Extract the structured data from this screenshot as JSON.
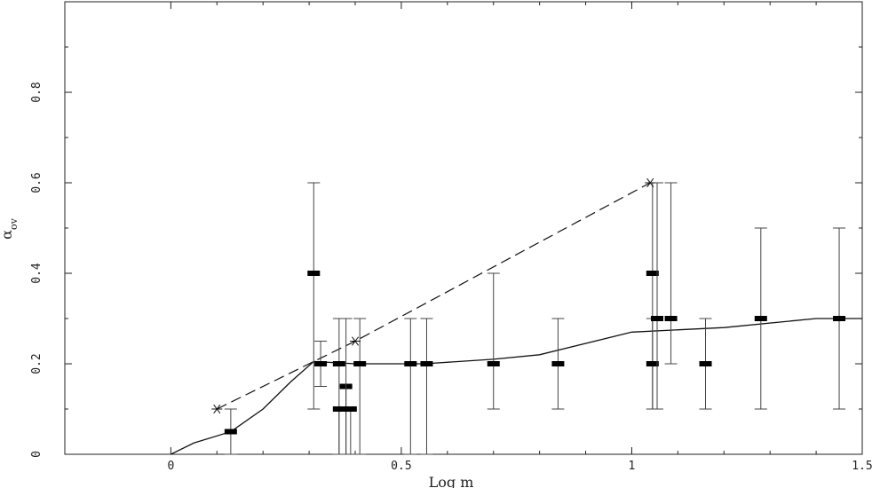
{
  "chart_data": {
    "type": "scatter",
    "title": "",
    "xlabel": "Log m",
    "ylabel": "α",
    "ylabel_sub": "ov",
    "xlim": [
      -0.23,
      1.5
    ],
    "ylim": [
      0,
      1.0
    ],
    "x_ticks": [
      0,
      0.5,
      1,
      1.5
    ],
    "x_tick_labels": [
      "0",
      "0.5",
      "1",
      "1.5"
    ],
    "y_ticks": [
      0,
      0.2,
      0.4,
      0.6,
      0.8
    ],
    "y_tick_labels": [
      "0",
      "0.2",
      "0.4",
      "0.6",
      "0.8"
    ],
    "grid": false,
    "series": [
      {
        "kind": "points_with_error_bars",
        "points": [
          {
            "x": 0.13,
            "y": 0.05,
            "lo": 0.0,
            "hi": 0.1
          },
          {
            "x": 0.31,
            "y": 0.4,
            "lo": 0.1,
            "hi": 0.6
          },
          {
            "x": 0.325,
            "y": 0.2,
            "lo": 0.15,
            "hi": 0.25
          },
          {
            "x": 0.365,
            "y": 0.2,
            "lo": 0.0,
            "hi": 0.3
          },
          {
            "x": 0.365,
            "y": 0.1,
            "lo": 0.0,
            "hi": 0.1
          },
          {
            "x": 0.38,
            "y": 0.15,
            "lo": 0.0,
            "hi": 0.15
          },
          {
            "x": 0.38,
            "y": 0.1,
            "lo": 0.0,
            "hi": 0.3
          },
          {
            "x": 0.39,
            "y": 0.1,
            "lo": 0.0,
            "hi": 0.1
          },
          {
            "x": 0.41,
            "y": 0.2,
            "lo": 0.0,
            "hi": 0.3
          },
          {
            "x": 0.52,
            "y": 0.2,
            "lo": 0.0,
            "hi": 0.3
          },
          {
            "x": 0.555,
            "y": 0.2,
            "lo": 0.0,
            "hi": 0.3
          },
          {
            "x": 0.7,
            "y": 0.2,
            "lo": 0.1,
            "hi": 0.4
          },
          {
            "x": 0.84,
            "y": 0.2,
            "lo": 0.1,
            "hi": 0.3
          },
          {
            "x": 1.045,
            "y": 0.4,
            "lo": 0.1,
            "hi": 0.6
          },
          {
            "x": 1.045,
            "y": 0.2,
            "lo": 0.1,
            "hi": 0.3
          },
          {
            "x": 1.055,
            "y": 0.3,
            "lo": 0.1,
            "hi": 0.6
          },
          {
            "x": 1.085,
            "y": 0.3,
            "lo": 0.2,
            "hi": 0.6
          },
          {
            "x": 1.16,
            "y": 0.2,
            "lo": 0.1,
            "hi": 0.3
          },
          {
            "x": 1.28,
            "y": 0.3,
            "lo": 0.1,
            "hi": 0.5
          },
          {
            "x": 1.45,
            "y": 0.3,
            "lo": 0.1,
            "hi": 0.5
          }
        ]
      },
      {
        "kind": "solid_line",
        "x": [
          0,
          0.05,
          0.13,
          0.2,
          0.26,
          0.31,
          0.4,
          0.55,
          0.7,
          0.8,
          1.0,
          1.2,
          1.4,
          1.5
        ],
        "y": [
          0,
          0.025,
          0.05,
          0.1,
          0.16,
          0.205,
          0.2,
          0.2,
          0.21,
          0.22,
          0.27,
          0.28,
          0.3,
          0.3
        ]
      },
      {
        "kind": "dashed_line_with_star_markers",
        "x": [
          0.1,
          0.4,
          1.04
        ],
        "y": [
          0.1,
          0.25,
          0.6
        ]
      }
    ]
  }
}
